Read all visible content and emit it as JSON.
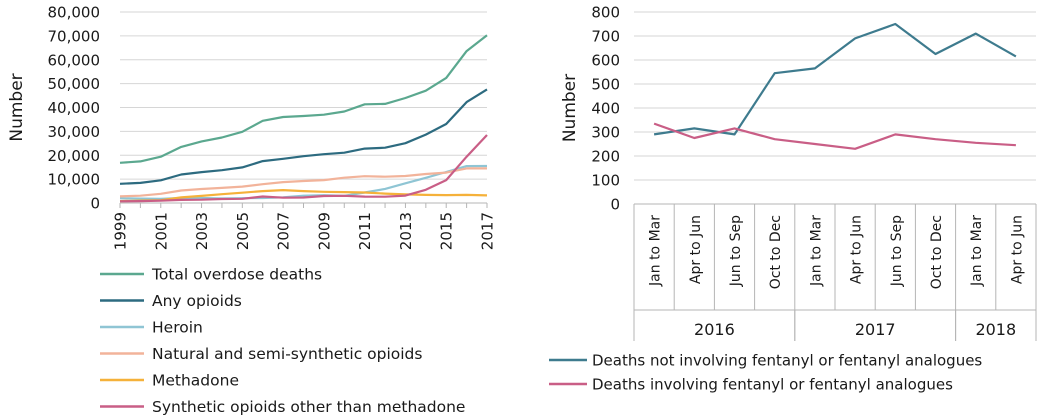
{
  "chart_data": [
    {
      "type": "line",
      "title": "",
      "xlabel": "",
      "ylabel": "Number",
      "ylim": [
        0,
        80000
      ],
      "yticks": [
        "0",
        "10,000",
        "20,000",
        "30,000",
        "40,000",
        "50,000",
        "60,000",
        "70,000",
        "80,000"
      ],
      "x": [
        1999,
        2000,
        2001,
        2002,
        2003,
        2004,
        2005,
        2006,
        2007,
        2008,
        2009,
        2010,
        2011,
        2012,
        2013,
        2014,
        2015,
        2016,
        2017
      ],
      "xtick_labels": [
        "1999",
        "2001",
        "2003",
        "2005",
        "2007",
        "2009",
        "2011",
        "2013",
        "2015",
        "2017"
      ],
      "grid": "horizontal",
      "legend_position": "bottom",
      "series": [
        {
          "name": "Total overdose deaths",
          "color": "#5ba88f",
          "values": [
            16849,
            17415,
            19394,
            23518,
            25785,
            27424,
            29813,
            34425,
            36010,
            36450,
            37004,
            38329,
            41340,
            41502,
            43982,
            47055,
            52404,
            63632,
            70237
          ]
        },
        {
          "name": "Any opioids",
          "color": "#2d6b80",
          "values": [
            8050,
            8407,
            9496,
            11920,
            12940,
            13756,
            14918,
            17545,
            18516,
            19582,
            20422,
            21089,
            22784,
            23166,
            25052,
            28647,
            33091,
            42249,
            47600
          ]
        },
        {
          "name": "Heroin",
          "color": "#8fc5d4",
          "values": [
            1960,
            1842,
            1779,
            2089,
            2080,
            1878,
            2009,
            2088,
            2399,
            3041,
            3278,
            3036,
            4397,
            5925,
            8257,
            10574,
            12989,
            15469,
            15482
          ]
        },
        {
          "name": "Natural and semi-synthetic opioids",
          "color": "#f2b39a",
          "values": [
            2749,
            3058,
            3862,
            5220,
            5847,
            6324,
            6864,
            7857,
            8760,
            9224,
            9578,
            10590,
            11210,
            11000,
            11300,
            12159,
            12727,
            14487,
            14495
          ]
        },
        {
          "name": "Methadone",
          "color": "#f5b13a",
          "values": [
            784,
            988,
            1183,
            2361,
            2971,
            3665,
            4305,
            5001,
            5406,
            5000,
            4690,
            4577,
            4418,
            3932,
            3591,
            3400,
            3301,
            3373,
            3194
          ]
        },
        {
          "name": "Synthetic opioids other than methadone",
          "color": "#c95e86",
          "values": [
            730,
            782,
            957,
            1295,
            1400,
            1664,
            1742,
            2707,
            2213,
            2306,
            2946,
            3007,
            2666,
            2628,
            3105,
            5544,
            9580,
            19413,
            28466
          ]
        }
      ]
    },
    {
      "type": "line",
      "title": "",
      "xlabel": "",
      "ylabel": "Number",
      "ylim": [
        0,
        800
      ],
      "yticks": [
        "0",
        "100",
        "200",
        "300",
        "400",
        "500",
        "600",
        "700",
        "800"
      ],
      "categories": [
        "Jan to Mar",
        "Apr to Jun",
        "Jun to Sep",
        "Oct to Dec",
        "Jan to Mar",
        "Apr to Jun",
        "Jun to Sep",
        "Oct to Dec",
        "Jan to Mar",
        "Apr to Jun"
      ],
      "year_groups": [
        {
          "label": "2016",
          "count": 4
        },
        {
          "label": "2017",
          "count": 4
        },
        {
          "label": "2018",
          "count": 2
        }
      ],
      "grid": "horizontal",
      "legend_position": "bottom",
      "series": [
        {
          "name": "Deaths not involving fentanyl or fentanyl analogues",
          "color": "#3e7b8e",
          "values": [
            290,
            315,
            290,
            545,
            565,
            690,
            750,
            625,
            710,
            615
          ]
        },
        {
          "name": "Deaths involving fentanyl or fentanyl analogues",
          "color": "#c95e86",
          "values": [
            335,
            275,
            315,
            270,
            250,
            230,
            290,
            270,
            255,
            245
          ]
        }
      ]
    }
  ]
}
